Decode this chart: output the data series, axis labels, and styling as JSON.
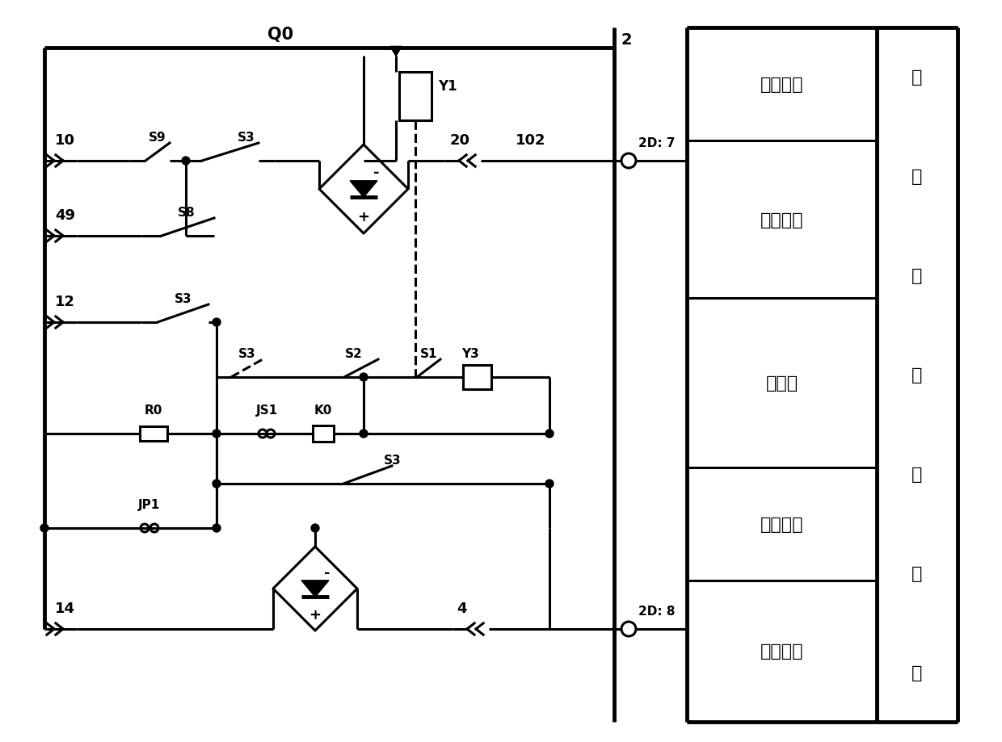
{
  "lw": 2.2,
  "lw_t": 3.5,
  "panel_labels": [
    "合闸闭锁",
    "跳位监视",
    "重合闸",
    "就地操作",
    "远方操作"
  ],
  "vert_chars": [
    "断",
    "路",
    "器",
    "合",
    "闸",
    "回",
    "路"
  ],
  "label_Q0": "Q0",
  "label_2": "2",
  "label_10": "10",
  "label_49": "49",
  "label_12": "12",
  "label_14": "14",
  "label_20": "20",
  "label_4": "4",
  "label_102": "102",
  "label_2D7": "2D: 7",
  "label_2D8": "2D: 8",
  "label_S9": "S9",
  "label_S3": "S3",
  "label_S8": "S8",
  "label_S2": "S2",
  "label_S1": "S1",
  "label_Y1": "Y1",
  "label_Y3": "Y3",
  "label_R0": "R0",
  "label_JS1": "JS1",
  "label_K0": "K0",
  "label_JP1": "JP1"
}
